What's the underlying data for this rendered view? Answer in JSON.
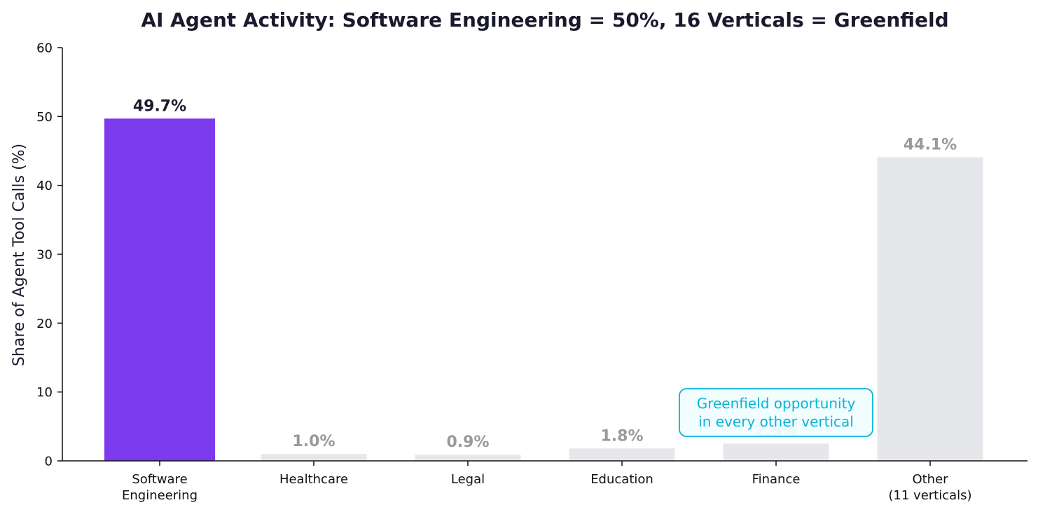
{
  "chart_data": {
    "type": "bar",
    "title": "AI Agent Activity: Software Engineering = 50%, 16 Verticals = Greenfield",
    "ylabel": "Share of Agent Tool Calls (%)",
    "xlabel": "",
    "ylim": [
      0,
      60
    ],
    "yticks": [
      0,
      10,
      20,
      30,
      40,
      50,
      60
    ],
    "grid": false,
    "categories": [
      [
        "Software",
        "Engineering"
      ],
      [
        "Healthcare"
      ],
      [
        "Legal"
      ],
      [
        "Education"
      ],
      [
        "Finance"
      ],
      [
        "Other",
        "(11 verticals)"
      ]
    ],
    "values": [
      49.7,
      1.0,
      0.9,
      1.8,
      2.5,
      44.1
    ],
    "value_labels": [
      "49.7%",
      "1.0%",
      "0.9%",
      "1.8%",
      "2.5%",
      "44.1%"
    ],
    "bar_colors": [
      "#7c3aed",
      "#e5e7eb",
      "#e5e7eb",
      "#e5e7eb",
      "#e5e7eb",
      "#e5e7eb"
    ],
    "value_label_colors": [
      "#1a1a2e",
      "#999999",
      "#999999",
      "#999999",
      "#999999",
      "#999999"
    ],
    "annotation": {
      "lines": [
        "Greenfield opportunity",
        "in every other vertical"
      ],
      "text_color": "#06b6d4",
      "border_color": "#06b6d4",
      "background": "#f0fdff"
    }
  }
}
